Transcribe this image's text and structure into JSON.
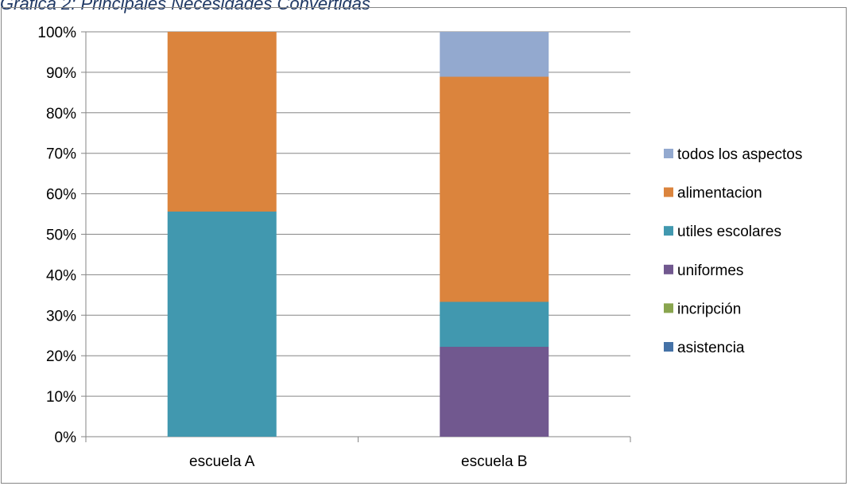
{
  "title": "Grafica 2: Principales Necesidades Convertidas",
  "chart_data": {
    "type": "bar",
    "stacked": true,
    "title": "Grafica 2: Principales Necesidades Convertidas",
    "categories": [
      "escuela A",
      "escuela B"
    ],
    "y_ticks": [
      "0%",
      "10%",
      "20%",
      "30%",
      "40%",
      "50%",
      "60%",
      "70%",
      "80%",
      "90%",
      "100%"
    ],
    "ylim": [
      0,
      100
    ],
    "grid": true,
    "legend_position": "right",
    "series": [
      {
        "name": "asistencia",
        "color": "#4572a7",
        "values": [
          0,
          0
        ]
      },
      {
        "name": "incripción",
        "color": "#89a54e",
        "values": [
          0,
          0
        ]
      },
      {
        "name": "uniformes",
        "color": "#71588f",
        "values": [
          0,
          22.2
        ]
      },
      {
        "name": "utiles escolares",
        "color": "#4198af",
        "values": [
          55.6,
          11.1
        ]
      },
      {
        "name": "alimentacion",
        "color": "#db843d",
        "values": [
          44.4,
          55.6
        ]
      },
      {
        "name": "todos los aspectos",
        "color": "#93a9cf",
        "values": [
          0,
          11.1
        ]
      }
    ]
  }
}
